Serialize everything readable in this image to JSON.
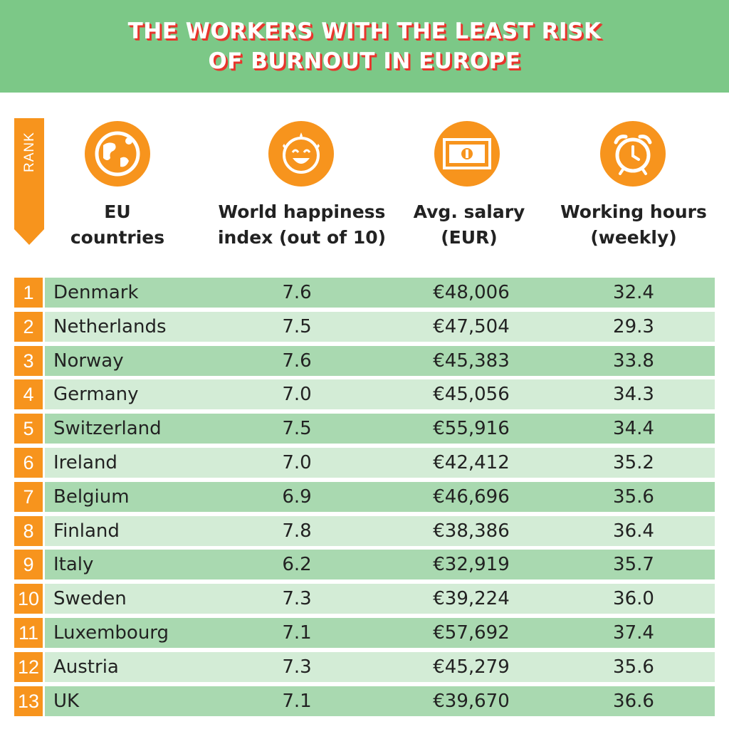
{
  "title": {
    "line1": "THE WORKERS WITH THE LEAST RISK",
    "line2": "OF BURNOUT IN EUROPE"
  },
  "rank_label": "RANK",
  "colors": {
    "banner": "#7cc887",
    "title_shadow": "#e8352c",
    "accent": "#f7941d",
    "row_dark": "#a9d9b0",
    "row_light": "#d3ecd6"
  },
  "icons": [
    "globe-icon",
    "smiley-face-icon",
    "banknote-icon",
    "alarm-clock-icon"
  ],
  "columns": {
    "country": {
      "line1": "EU",
      "line2": "countries"
    },
    "happiness": {
      "line1": "World happiness",
      "line2": "index (out of 10)"
    },
    "salary": {
      "line1": "Avg. salary",
      "line2": "(EUR)"
    },
    "hours": {
      "line1": "Working hours",
      "line2": "(weekly)"
    }
  },
  "chart_data": {
    "type": "table",
    "title": "THE WORKERS WITH THE LEAST RISK OF BURNOUT IN EUROPE",
    "columns": [
      "RANK",
      "EU countries",
      "World happiness index (out of 10)",
      "Avg. salary (EUR)",
      "Working hours (weekly)"
    ],
    "rows": [
      {
        "rank": "1",
        "country": "Denmark",
        "happiness": "7.6",
        "salary": "€48,006",
        "hours": "32.4"
      },
      {
        "rank": "2",
        "country": "Netherlands",
        "happiness": "7.5",
        "salary": "€47,504",
        "hours": "29.3"
      },
      {
        "rank": "3",
        "country": "Norway",
        "happiness": "7.6",
        "salary": "€45,383",
        "hours": "33.8"
      },
      {
        "rank": "4",
        "country": "Germany",
        "happiness": "7.0",
        "salary": "€45,056",
        "hours": "34.3"
      },
      {
        "rank": "5",
        "country": "Switzerland",
        "happiness": "7.5",
        "salary": "€55,916",
        "hours": "34.4"
      },
      {
        "rank": "6",
        "country": "Ireland",
        "happiness": "7.0",
        "salary": "€42,412",
        "hours": "35.2"
      },
      {
        "rank": "7",
        "country": "Belgium",
        "happiness": "6.9",
        "salary": "€46,696",
        "hours": "35.6"
      },
      {
        "rank": "8",
        "country": "Finland",
        "happiness": "7.8",
        "salary": "€38,386",
        "hours": "36.4"
      },
      {
        "rank": "9",
        "country": "Italy",
        "happiness": "6.2",
        "salary": "€32,919",
        "hours": "35.7"
      },
      {
        "rank": "10",
        "country": "Sweden",
        "happiness": "7.3",
        "salary": "€39,224",
        "hours": "36.0"
      },
      {
        "rank": "11",
        "country": "Luxembourg",
        "happiness": "7.1",
        "salary": "€57,692",
        "hours": "37.4"
      },
      {
        "rank": "12",
        "country": "Austria",
        "happiness": "7.3",
        "salary": "€45,279",
        "hours": "35.6"
      },
      {
        "rank": "13",
        "country": "UK",
        "happiness": "7.1",
        "salary": "€39,670",
        "hours": "36.6"
      }
    ]
  }
}
